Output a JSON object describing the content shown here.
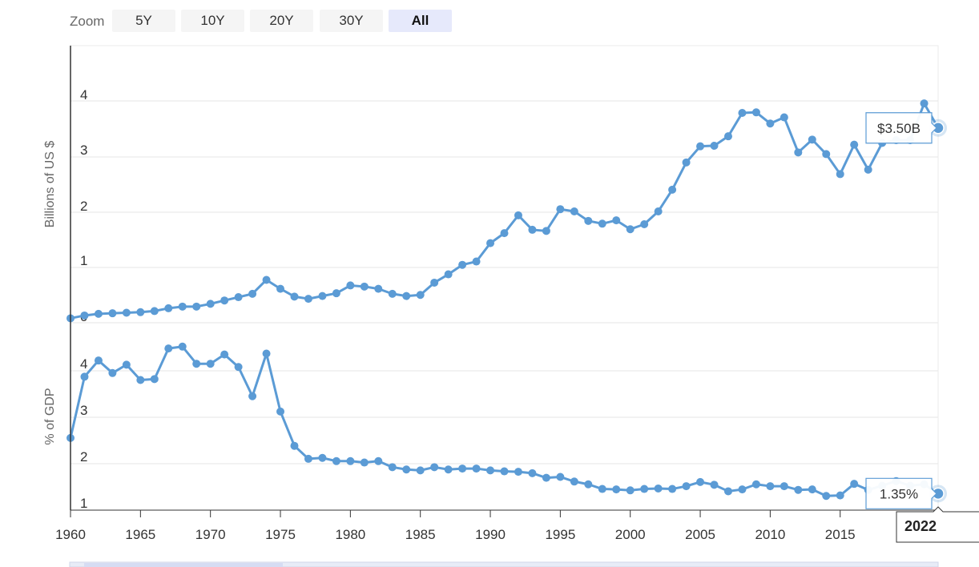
{
  "zoom": {
    "label": "Zoom",
    "buttons": [
      "5Y",
      "10Y",
      "20Y",
      "30Y",
      "All"
    ],
    "active": "All"
  },
  "colors": {
    "series": "#5b9bd5",
    "grid": "#e6e6e6",
    "axis": "#333333"
  },
  "chart_data": [
    {
      "type": "line",
      "title": "",
      "ylabel": "Billions of US $",
      "xlabel": "",
      "ylim": [
        0,
        4
      ],
      "yticks": [
        "0",
        "1",
        "2",
        "3",
        "4"
      ],
      "x": [
        1960,
        1961,
        1962,
        1963,
        1964,
        1965,
        1966,
        1967,
        1968,
        1969,
        1970,
        1971,
        1972,
        1973,
        1974,
        1975,
        1976,
        1977,
        1978,
        1979,
        1980,
        1981,
        1982,
        1983,
        1984,
        1985,
        1986,
        1987,
        1988,
        1989,
        1990,
        1991,
        1992,
        1993,
        1994,
        1995,
        1996,
        1997,
        1998,
        1999,
        2000,
        2001,
        2002,
        2003,
        2004,
        2005,
        2006,
        2007,
        2008,
        2009,
        2010,
        2011,
        2012,
        2013,
        2014,
        2015,
        2016,
        2017,
        2018,
        2019,
        2020,
        2021,
        2022
      ],
      "series": [
        {
          "values": [
            0.08,
            0.13,
            0.16,
            0.17,
            0.18,
            0.19,
            0.21,
            0.26,
            0.29,
            0.29,
            0.34,
            0.4,
            0.46,
            0.52,
            0.77,
            0.61,
            0.47,
            0.43,
            0.48,
            0.53,
            0.67,
            0.65,
            0.61,
            0.52,
            0.48,
            0.5,
            0.72,
            0.87,
            1.04,
            1.1,
            1.43,
            1.61,
            1.93,
            1.67,
            1.65,
            2.04,
            2.0,
            1.83,
            1.78,
            1.84,
            1.68,
            1.77,
            2.0,
            2.39,
            2.88,
            3.17,
            3.18,
            3.35,
            3.77,
            3.78,
            3.58,
            3.69,
            3.06,
            3.29,
            3.03,
            2.67,
            3.2,
            2.75,
            3.23,
            3.28,
            3.28,
            3.94,
            3.5
          ]
        }
      ],
      "tooltip": {
        "label": "$3.50B"
      }
    },
    {
      "type": "line",
      "title": "",
      "ylabel": "% of GDP",
      "xlabel": "",
      "ylim": [
        1,
        4
      ],
      "yticks": [
        "1",
        "2",
        "3",
        "4"
      ],
      "x": [
        1960,
        1961,
        1962,
        1963,
        1964,
        1965,
        1966,
        1967,
        1968,
        1969,
        1970,
        1971,
        1972,
        1973,
        1974,
        1975,
        1976,
        1977,
        1978,
        1979,
        1980,
        1981,
        1982,
        1983,
        1984,
        1985,
        1986,
        1987,
        1988,
        1989,
        1990,
        1991,
        1992,
        1993,
        1994,
        1995,
        1996,
        1997,
        1998,
        1999,
        2000,
        2001,
        2002,
        2003,
        2004,
        2005,
        2006,
        2007,
        2008,
        2009,
        2010,
        2011,
        2012,
        2013,
        2014,
        2015,
        2016,
        2017,
        2018,
        2019,
        2020,
        2021,
        2022
      ],
      "series": [
        {
          "values": [
            2.55,
            3.87,
            4.22,
            3.95,
            4.13,
            3.8,
            3.82,
            4.48,
            4.52,
            4.15,
            4.15,
            4.35,
            4.08,
            3.45,
            4.37,
            3.12,
            2.38,
            2.1,
            2.12,
            2.05,
            2.05,
            2.02,
            2.05,
            1.92,
            1.87,
            1.85,
            1.92,
            1.87,
            1.89,
            1.89,
            1.85,
            1.83,
            1.82,
            1.79,
            1.69,
            1.71,
            1.61,
            1.55,
            1.45,
            1.44,
            1.42,
            1.45,
            1.46,
            1.45,
            1.51,
            1.6,
            1.54,
            1.4,
            1.44,
            1.55,
            1.51,
            1.51,
            1.43,
            1.44,
            1.3,
            1.31,
            1.56,
            1.43,
            1.52,
            1.62,
            1.52,
            1.55,
            1.35
          ]
        }
      ],
      "tooltip": {
        "label": "1.35%"
      }
    }
  ],
  "x_axis": {
    "tick_labels": [
      "1960",
      "1965",
      "1970",
      "1975",
      "1980",
      "1985",
      "1990",
      "1995",
      "2000",
      "2005",
      "2010",
      "2015"
    ],
    "highlight_label": "2022"
  }
}
